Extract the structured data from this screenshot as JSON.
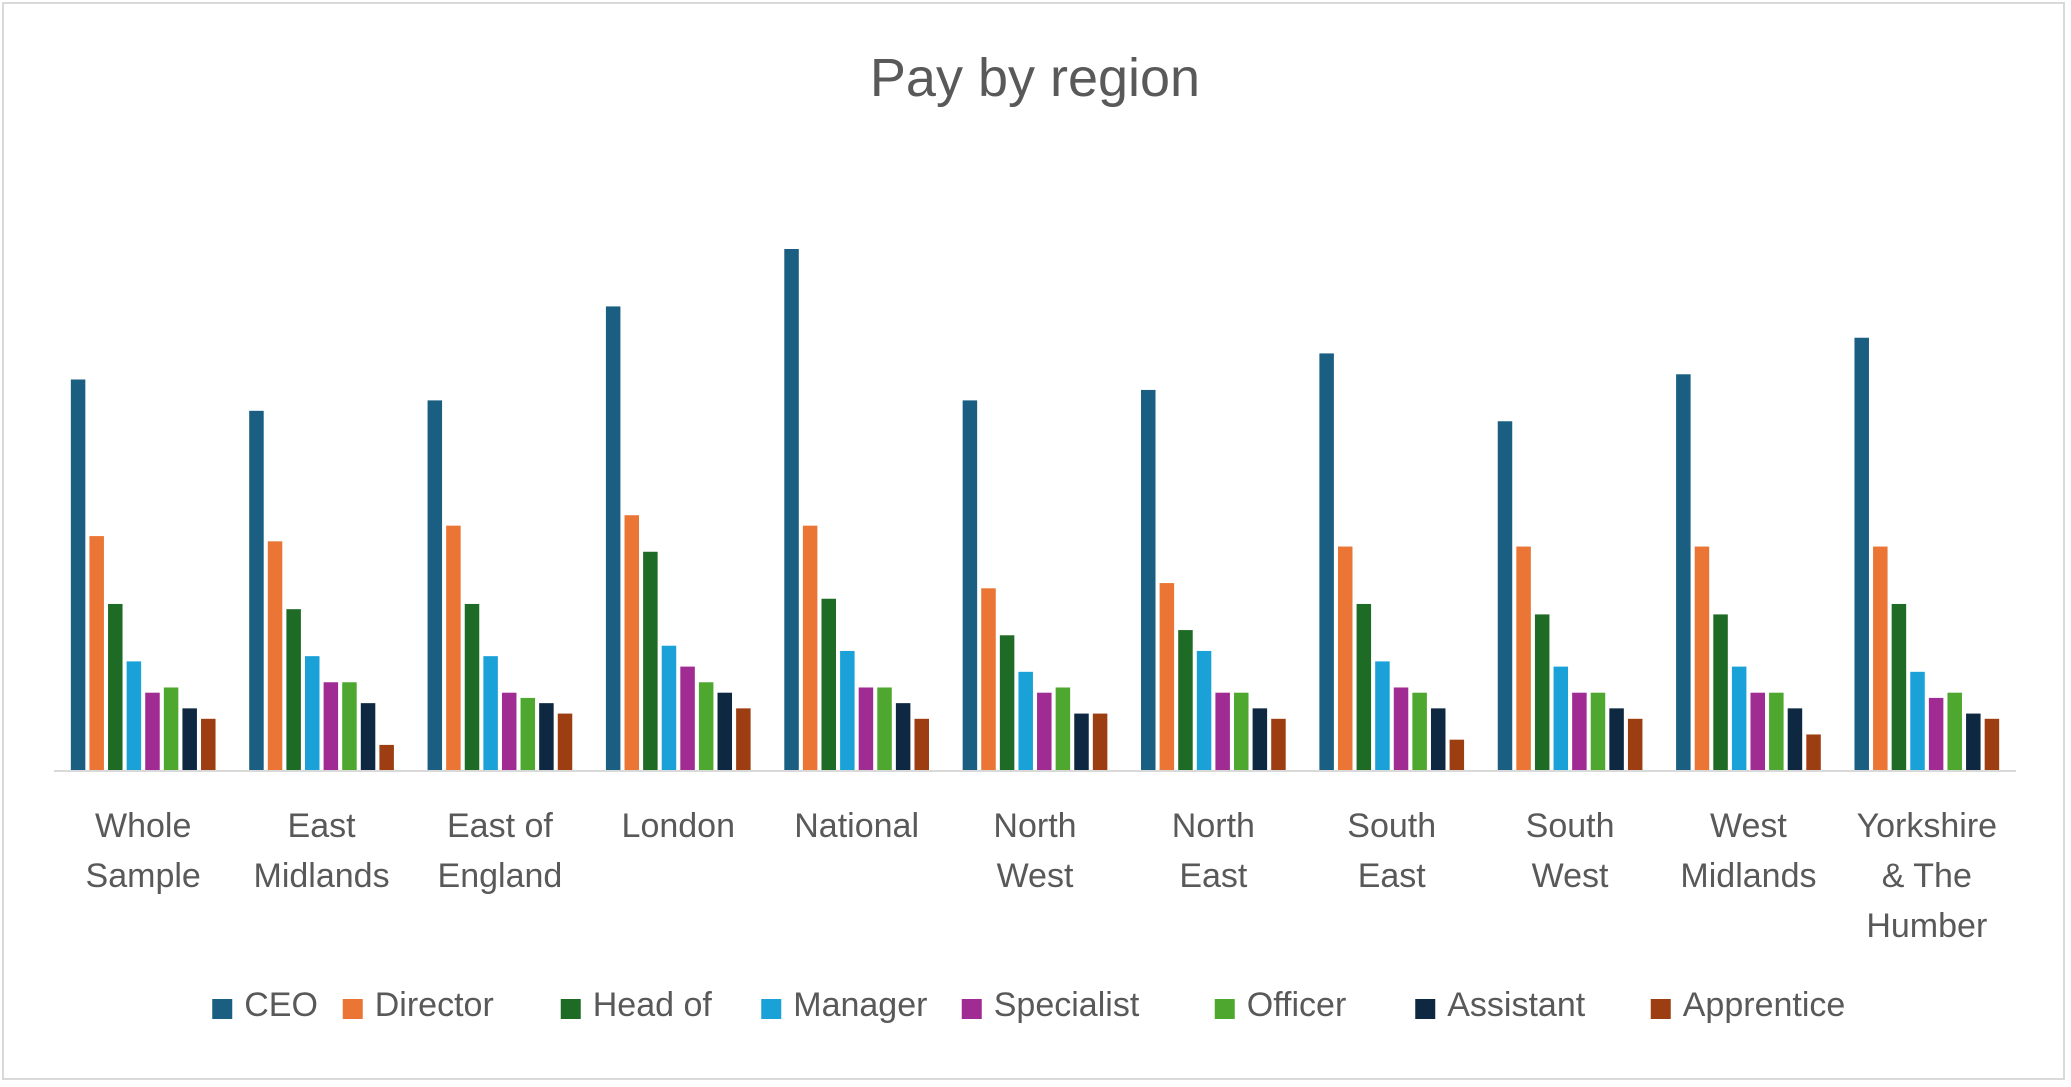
{
  "chart_data": {
    "type": "bar",
    "title": "Pay by region",
    "xlabel": "",
    "ylabel": "",
    "ylim": [
      0,
      100
    ],
    "grid": false,
    "legend_position": "bottom",
    "categories": [
      [
        "Whole",
        "Sample"
      ],
      [
        "East",
        "Midlands"
      ],
      [
        "East of",
        "England"
      ],
      [
        "London"
      ],
      [
        "National"
      ],
      [
        "North",
        "West"
      ],
      [
        "North",
        "East"
      ],
      [
        "South",
        "East"
      ],
      [
        "South",
        "West"
      ],
      [
        "West",
        "Midlands"
      ],
      [
        "Yorkshire",
        "& The",
        "Humber"
      ]
    ],
    "series": [
      {
        "name": "CEO",
        "color": "#1a5f82",
        "values": [
          75,
          69,
          71,
          89,
          100,
          71,
          73,
          80,
          67,
          76,
          83
        ]
      },
      {
        "name": "Director",
        "color": "#ea7534",
        "values": [
          45,
          44,
          47,
          49,
          47,
          35,
          36,
          43,
          43,
          43,
          43
        ]
      },
      {
        "name": "Head of",
        "color": "#1e6b25",
        "values": [
          32,
          31,
          32,
          42,
          33,
          26,
          27,
          32,
          30,
          30,
          32
        ]
      },
      {
        "name": "Manager",
        "color": "#1aa2d8",
        "values": [
          21,
          22,
          22,
          24,
          23,
          19,
          23,
          21,
          20,
          20,
          19
        ]
      },
      {
        "name": "Specialist",
        "color": "#a02b93",
        "values": [
          15,
          17,
          15,
          20,
          16,
          15,
          15,
          16,
          15,
          15,
          14
        ]
      },
      {
        "name": "Officer",
        "color": "#4ea72e",
        "values": [
          16,
          17,
          14,
          17,
          16,
          16,
          15,
          15,
          15,
          15,
          15
        ]
      },
      {
        "name": "Assistant",
        "color": "#0e2841",
        "values": [
          12,
          13,
          13,
          15,
          13,
          11,
          12,
          12,
          12,
          12,
          11
        ]
      },
      {
        "name": "Apprentice",
        "color": "#9c3e12",
        "values": [
          10,
          5,
          11,
          12,
          10,
          11,
          10,
          6,
          10,
          7,
          10
        ]
      }
    ]
  }
}
